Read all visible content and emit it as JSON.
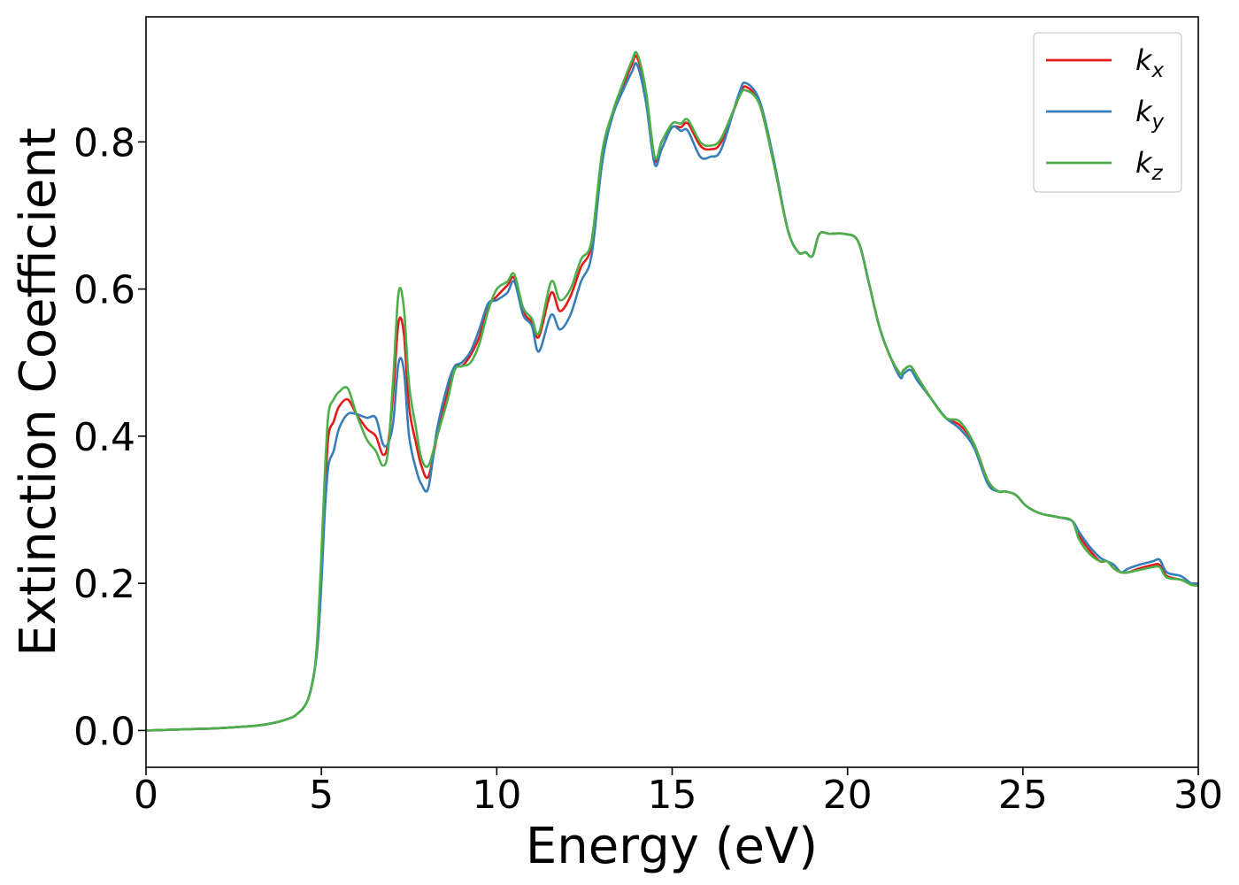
{
  "chart_data": {
    "type": "line",
    "xlabel": "Energy (eV)",
    "ylabel": "Extinction Coefficient",
    "xlim": [
      0,
      30
    ],
    "ylim": [
      -0.05,
      0.97
    ],
    "x_ticks": [
      "0",
      "5",
      "10",
      "15",
      "20",
      "25",
      "30"
    ],
    "y_ticks": [
      "0.0",
      "0.2",
      "0.4",
      "0.6",
      "0.8"
    ],
    "grid": false,
    "legend_position": "top-right",
    "x": [
      0,
      1,
      2,
      3,
      3.5,
      4,
      4.3,
      4.6,
      4.8,
      4.9,
      5.0,
      5.1,
      5.2,
      5.35,
      5.5,
      5.75,
      6.0,
      6.3,
      6.55,
      6.75,
      6.9,
      7.05,
      7.2,
      7.35,
      7.5,
      7.7,
      7.85,
      8.05,
      8.3,
      8.6,
      8.8,
      9.0,
      9.25,
      9.5,
      9.75,
      10.0,
      10.3,
      10.5,
      10.75,
      11.0,
      11.2,
      11.55,
      11.8,
      12.1,
      12.4,
      12.7,
      13.0,
      13.3,
      13.6,
      13.85,
      14.0,
      14.25,
      14.5,
      14.7,
      15.0,
      15.25,
      15.45,
      15.8,
      16.1,
      16.4,
      16.9,
      17.1,
      17.5,
      17.9,
      18.3,
      18.6,
      18.8,
      19.0,
      19.2,
      19.5,
      19.9,
      20.3,
      20.6,
      20.9,
      21.2,
      21.5,
      21.6,
      21.8,
      22.0,
      22.4,
      22.8,
      23.2,
      23.6,
      24.0,
      24.3,
      24.5,
      24.8,
      25.1,
      25.5,
      26.0,
      26.4,
      26.6,
      26.9,
      27.2,
      27.4,
      27.6,
      27.8,
      28.0,
      28.3,
      28.7,
      28.9,
      29.1,
      29.5,
      29.8,
      30.0
    ],
    "series": [
      {
        "name": "k_x",
        "color": "#e41a1c",
        "values": [
          0.0,
          0.0015,
          0.003,
          0.006,
          0.009,
          0.015,
          0.022,
          0.04,
          0.08,
          0.13,
          0.22,
          0.32,
          0.4,
          0.42,
          0.44,
          0.45,
          0.43,
          0.41,
          0.4,
          0.375,
          0.39,
          0.46,
          0.555,
          0.54,
          0.44,
          0.39,
          0.36,
          0.345,
          0.4,
          0.46,
          0.495,
          0.495,
          0.51,
          0.535,
          0.575,
          0.59,
          0.605,
          0.615,
          0.57,
          0.555,
          0.535,
          0.595,
          0.57,
          0.59,
          0.63,
          0.66,
          0.78,
          0.835,
          0.875,
          0.905,
          0.915,
          0.865,
          0.775,
          0.8,
          0.82,
          0.82,
          0.825,
          0.795,
          0.79,
          0.8,
          0.86,
          0.875,
          0.85,
          0.77,
          0.68,
          0.65,
          0.65,
          0.645,
          0.675,
          0.675,
          0.675,
          0.665,
          0.61,
          0.55,
          0.51,
          0.485,
          0.49,
          0.495,
          0.48,
          0.45,
          0.425,
          0.415,
          0.39,
          0.34,
          0.325,
          0.325,
          0.32,
          0.305,
          0.295,
          0.29,
          0.285,
          0.265,
          0.245,
          0.23,
          0.23,
          0.22,
          0.215,
          0.215,
          0.22,
          0.225,
          0.225,
          0.21,
          0.205,
          0.2,
          0.2
        ]
      },
      {
        "name": "k_y",
        "color": "#377eb8",
        "values": [
          0.0,
          0.0015,
          0.003,
          0.006,
          0.009,
          0.015,
          0.022,
          0.04,
          0.08,
          0.12,
          0.2,
          0.3,
          0.36,
          0.38,
          0.41,
          0.43,
          0.43,
          0.425,
          0.425,
          0.39,
          0.39,
          0.42,
          0.5,
          0.49,
          0.4,
          0.355,
          0.335,
          0.33,
          0.41,
          0.47,
          0.495,
          0.5,
          0.515,
          0.545,
          0.58,
          0.585,
          0.595,
          0.61,
          0.565,
          0.55,
          0.515,
          0.565,
          0.545,
          0.565,
          0.61,
          0.645,
          0.77,
          0.835,
          0.87,
          0.895,
          0.905,
          0.855,
          0.77,
          0.79,
          0.82,
          0.815,
          0.815,
          0.78,
          0.78,
          0.79,
          0.865,
          0.88,
          0.855,
          0.775,
          0.68,
          0.65,
          0.65,
          0.645,
          0.675,
          0.675,
          0.675,
          0.665,
          0.61,
          0.55,
          0.51,
          0.48,
          0.485,
          0.49,
          0.475,
          0.45,
          0.425,
          0.41,
          0.385,
          0.335,
          0.325,
          0.325,
          0.32,
          0.305,
          0.295,
          0.29,
          0.285,
          0.27,
          0.25,
          0.235,
          0.23,
          0.225,
          0.215,
          0.22,
          0.225,
          0.23,
          0.232,
          0.215,
          0.21,
          0.2,
          0.2
        ]
      },
      {
        "name": "k_z",
        "color": "#4daf4a",
        "values": [
          0.0,
          0.0015,
          0.003,
          0.006,
          0.009,
          0.015,
          0.022,
          0.04,
          0.08,
          0.14,
          0.24,
          0.35,
          0.43,
          0.45,
          0.46,
          0.465,
          0.43,
          0.395,
          0.38,
          0.36,
          0.38,
          0.48,
          0.595,
          0.575,
          0.47,
          0.41,
          0.37,
          0.36,
          0.4,
          0.45,
          0.49,
          0.495,
          0.5,
          0.525,
          0.57,
          0.6,
          0.61,
          0.62,
          0.575,
          0.56,
          0.54,
          0.61,
          0.585,
          0.6,
          0.64,
          0.665,
          0.785,
          0.84,
          0.88,
          0.91,
          0.92,
          0.87,
          0.78,
          0.8,
          0.825,
          0.825,
          0.83,
          0.8,
          0.795,
          0.805,
          0.86,
          0.87,
          0.85,
          0.77,
          0.68,
          0.65,
          0.65,
          0.645,
          0.675,
          0.675,
          0.675,
          0.665,
          0.61,
          0.55,
          0.51,
          0.485,
          0.49,
          0.495,
          0.48,
          0.45,
          0.425,
          0.42,
          0.39,
          0.34,
          0.325,
          0.325,
          0.32,
          0.305,
          0.295,
          0.29,
          0.285,
          0.26,
          0.24,
          0.23,
          0.23,
          0.22,
          0.215,
          0.215,
          0.218,
          0.222,
          0.222,
          0.208,
          0.205,
          0.198,
          0.197
        ]
      }
    ],
    "legend": [
      {
        "symbol": "k",
        "subscript": "x",
        "color": "#e41a1c"
      },
      {
        "symbol": "k",
        "subscript": "y",
        "color": "#377eb8"
      },
      {
        "symbol": "k",
        "subscript": "z",
        "color": "#4daf4a"
      }
    ]
  }
}
